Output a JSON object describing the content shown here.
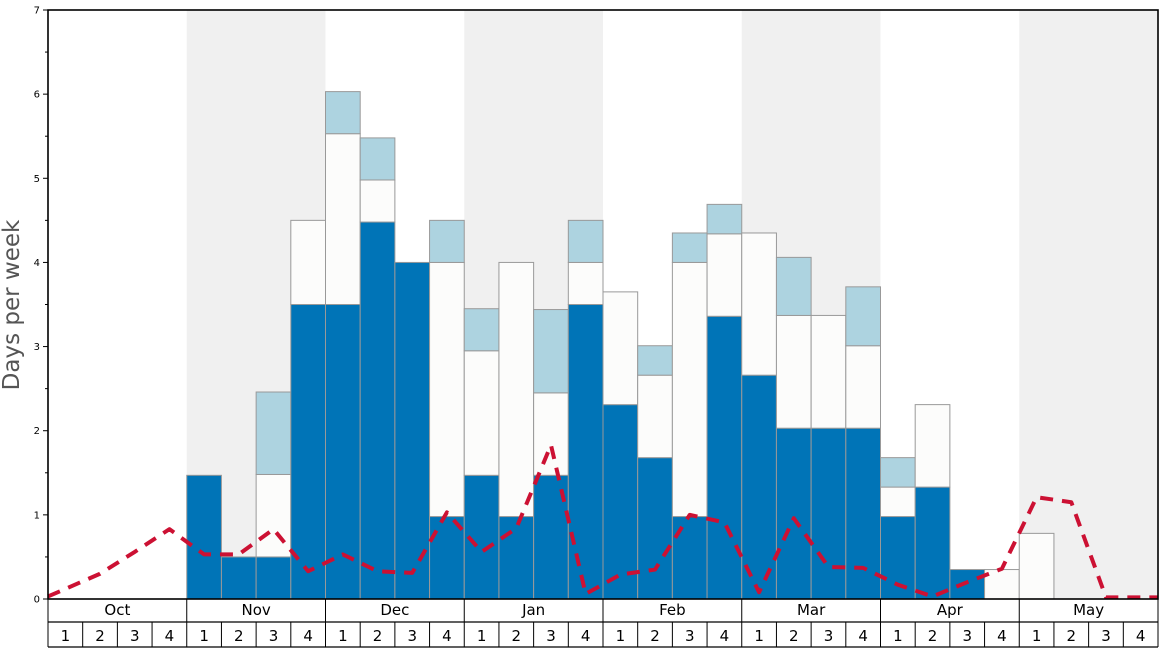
{
  "chart_data": {
    "type": "bar",
    "ylabel": "Days per week",
    "ylim": [
      0,
      7
    ],
    "yticks": [
      "0",
      "1",
      "2",
      "3",
      "4",
      "5",
      "6",
      "7"
    ],
    "months": [
      "Oct",
      "Nov",
      "Dec",
      "Jan",
      "Feb",
      "Mar",
      "Apr",
      "May"
    ],
    "weeks_per_month": 4,
    "week_labels": [
      "1",
      "2",
      "3",
      "4"
    ],
    "shaded_months": [
      "Nov",
      "Jan",
      "Mar",
      "May"
    ],
    "colors": {
      "bottom": "#0074b7",
      "middle": "#fcfcfb",
      "top": "#add3e0",
      "line": "#cc1133",
      "shade": "#f0f0f0",
      "bar_edge": "#999999"
    },
    "series": [
      {
        "key": "bottom",
        "values": [
          0,
          0,
          0,
          0,
          1.47,
          0.5,
          0.5,
          3.5,
          3.5,
          4.48,
          4.0,
          0.98,
          1.47,
          0.98,
          1.47,
          3.5,
          2.31,
          1.68,
          0.98,
          3.36,
          2.66,
          2.03,
          2.03,
          2.03,
          0.98,
          1.33,
          0.35,
          0,
          0,
          0,
          0,
          0
        ]
      },
      {
        "key": "middle",
        "values": [
          0,
          0,
          0,
          0,
          0,
          0,
          0.98,
          1.0,
          2.03,
          0.5,
          0,
          3.02,
          1.48,
          3.02,
          0.98,
          0.5,
          1.34,
          0.98,
          3.02,
          0.98,
          1.69,
          1.34,
          1.34,
          0.98,
          0.35,
          0.98,
          0,
          0.35,
          0.78,
          0,
          0,
          0
        ]
      },
      {
        "key": "top",
        "values": [
          0,
          0,
          0,
          0,
          0,
          0,
          0.98,
          0,
          0.5,
          0.5,
          0,
          0.5,
          0.5,
          0,
          0.99,
          0.5,
          0,
          0.35,
          0.35,
          0.35,
          0,
          0.69,
          0,
          0.7,
          0.35,
          0,
          0,
          0,
          0,
          0,
          0,
          0
        ]
      }
    ],
    "line": [
      0.03,
      0.3,
      0.56,
      0.83,
      0.53,
      0.53,
      0.83,
      0.33,
      0.53,
      0.33,
      0.31,
      1.03,
      0.56,
      0.84,
      1.83,
      0.06,
      0.29,
      0.35,
      1.0,
      0.91,
      0.08,
      0.96,
      0.38,
      0.37,
      0.17,
      0.03,
      0.2,
      0.36,
      1.21,
      1.15,
      0.02,
      0.02
    ]
  }
}
